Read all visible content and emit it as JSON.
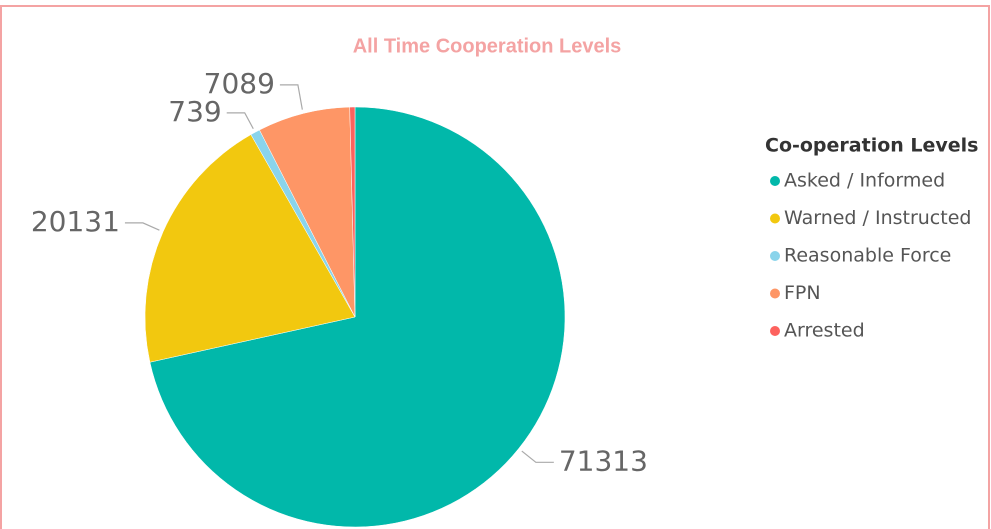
{
  "chart_data": {
    "type": "pie",
    "title": "All Time Cooperation Levels",
    "legend_title": "Co-operation Levels",
    "categories": [
      "Asked / Informed",
      "Warned / Instructed",
      "Reasonable Force",
      "FPN",
      "Arrested"
    ],
    "values": [
      71313,
      20131,
      739,
      7089,
      400
    ],
    "colors": [
      "#01b8aa",
      "#f2c80f",
      "#8ad4eb",
      "#fe9666",
      "#fd625e"
    ],
    "legend": "right"
  }
}
